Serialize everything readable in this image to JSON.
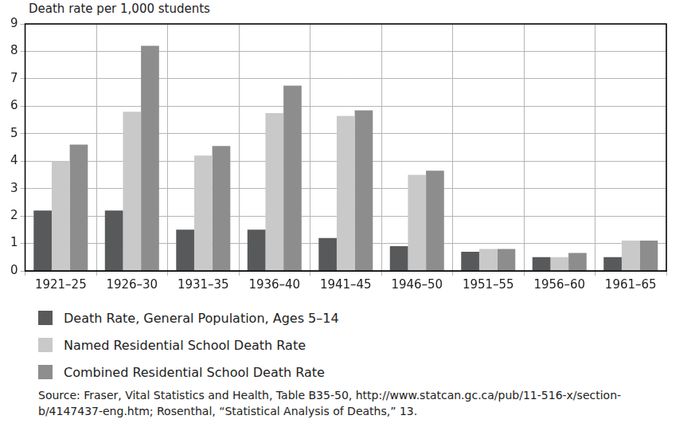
{
  "chart_data": {
    "type": "bar",
    "y_label": "Death rate per 1,000 students",
    "categories": [
      "1921–25",
      "1926–30",
      "1931–35",
      "1936–40",
      "1941–45",
      "1946–50",
      "1951–55",
      "1956–60",
      "1961–65"
    ],
    "series": [
      {
        "name": "Death Rate, General Population, Ages 5–14",
        "color": "#58595b",
        "values": [
          2.2,
          2.2,
          1.5,
          1.5,
          1.2,
          0.9,
          0.7,
          0.5,
          0.5
        ]
      },
      {
        "name": "Named Residential School Death Rate",
        "color": "#c9c9c9",
        "values": [
          4.0,
          5.8,
          4.2,
          5.75,
          5.65,
          3.5,
          0.8,
          0.5,
          1.1
        ]
      },
      {
        "name": "Combined Residential School Death Rate",
        "color": "#8d8d8d",
        "values": [
          4.6,
          8.2,
          4.55,
          6.75,
          5.85,
          3.65,
          0.8,
          0.65,
          1.1
        ]
      }
    ],
    "ylim": [
      0,
      9
    ],
    "yticks": [
      0,
      1,
      2,
      3,
      4,
      5,
      6,
      7,
      8,
      9
    ],
    "grid": true,
    "legend": "bottom",
    "source": "Source: Fraser, Vital Statistics and Health, Table B35-50, http://www.statcan.gc.ca/pub/11-516-x/section-b/4147437-eng.htm; Rosenthal, “Statistical Analysis of Deaths,” 13."
  }
}
